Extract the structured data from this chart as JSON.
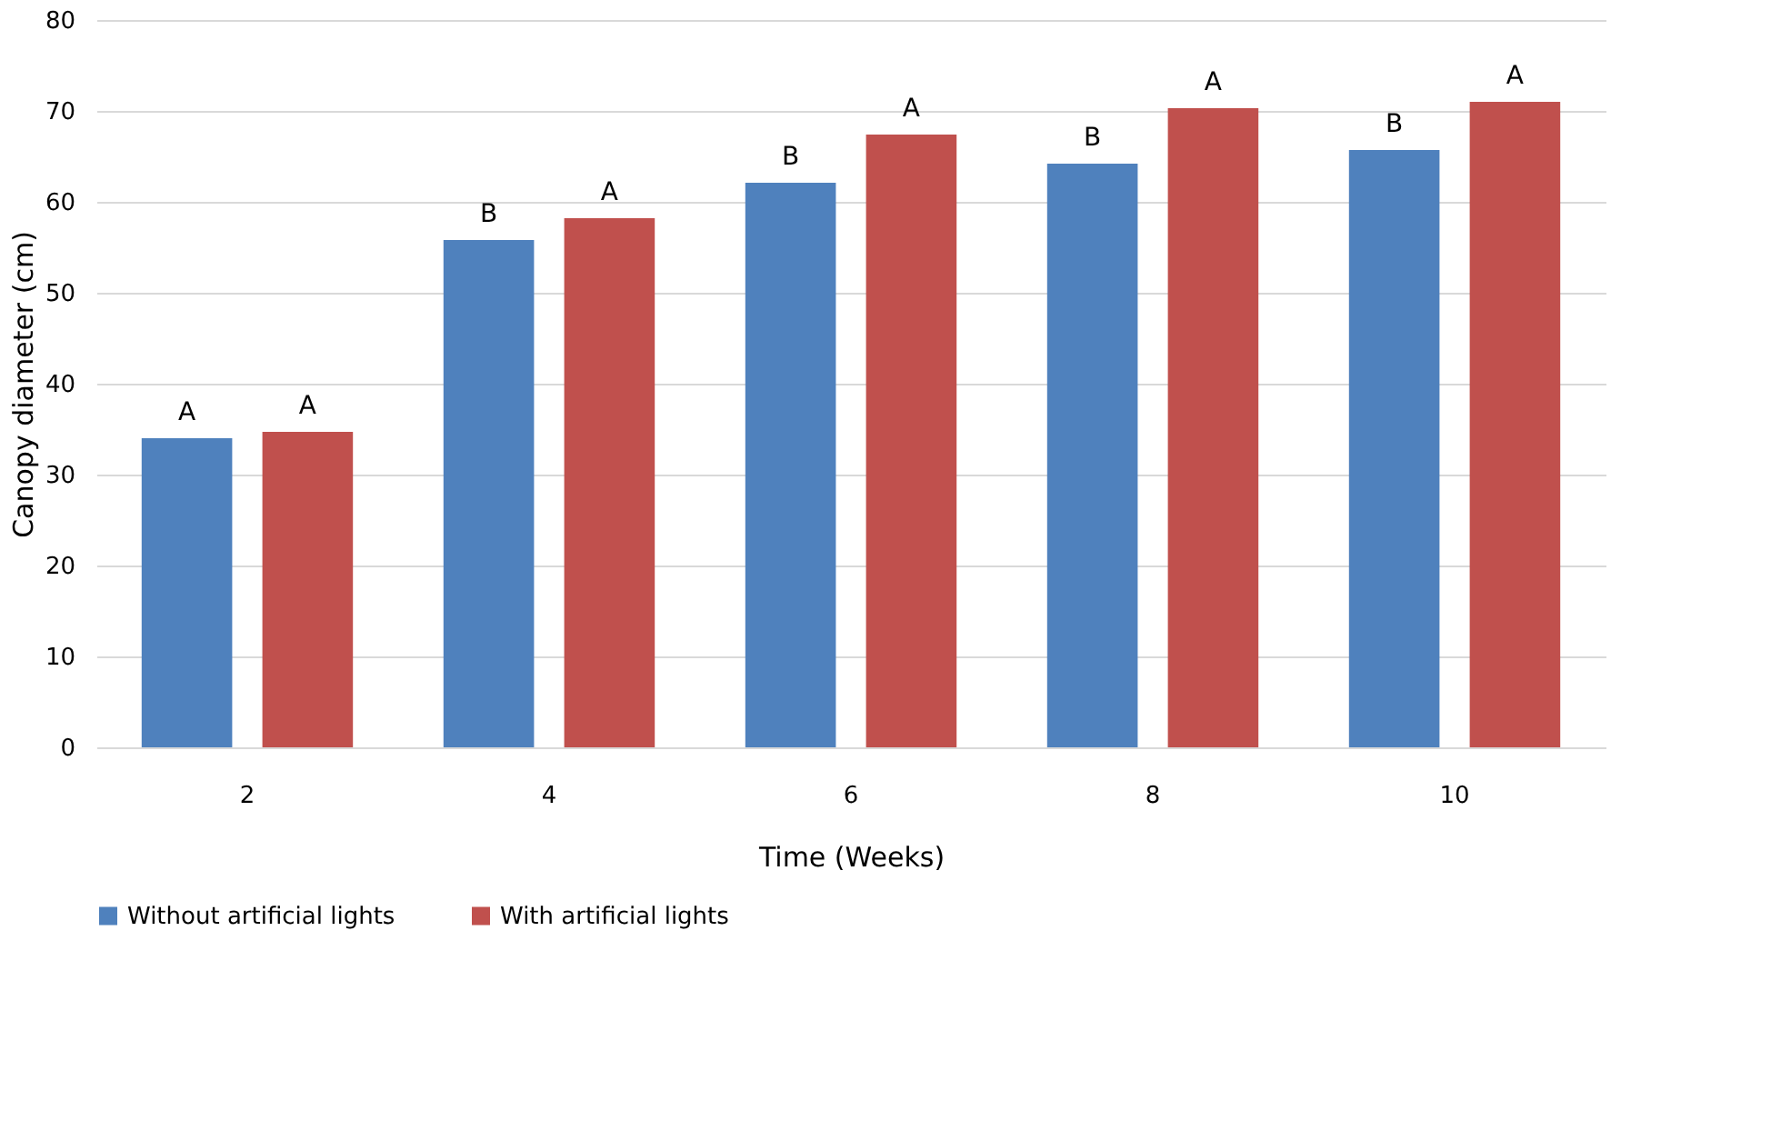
{
  "chart_data": {
    "type": "bar",
    "xlabel": "Time (Weeks)",
    "ylabel": "Canopy diameter (cm)",
    "categories": [
      "2",
      "4",
      "6",
      "8",
      "10"
    ],
    "series": [
      {
        "name": "Without artificial lights",
        "color": "#4f81bd",
        "values": [
          34.0,
          55.8,
          62.1,
          64.2,
          65.7
        ],
        "value_labels": [
          "A",
          "B",
          "B",
          "B",
          "B"
        ]
      },
      {
        "name": "With artificial lights",
        "color": "#c0504d",
        "values": [
          34.7,
          58.2,
          67.4,
          70.3,
          71.0
        ],
        "value_labels": [
          "A",
          "A",
          "A",
          "A",
          "A"
        ]
      }
    ],
    "ylim": [
      0,
      80
    ],
    "yticks": [
      0,
      10,
      20,
      30,
      40,
      50,
      60,
      70,
      80
    ],
    "grid": "y",
    "legend": "bottom"
  }
}
